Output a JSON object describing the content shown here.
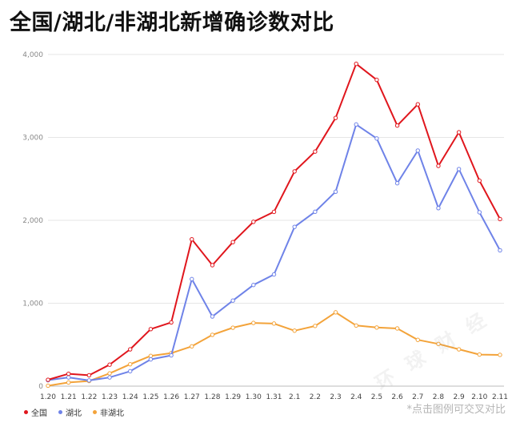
{
  "title": "全国/湖北/非湖北新增确诊数对比",
  "note": "*点击图例可交叉对比",
  "watermark": "环 球 财 经",
  "colors": {
    "national": "#e0161d",
    "hubei": "#6f83e8",
    "non_hubei": "#f3a33a",
    "grid": "#e6e6e6",
    "axis_text": "#888888"
  },
  "chart_data": {
    "type": "line",
    "title": "全国/湖北/非湖北新增确诊数对比",
    "x": [
      "1.20",
      "1.21",
      "1.22",
      "1.23",
      "1.24",
      "1.25",
      "1.26",
      "1.27",
      "1.28",
      "1.29",
      "1.30",
      "1.31",
      "2.1",
      "2.2",
      "2.3",
      "2.4",
      "2.5",
      "2.6",
      "2.7",
      "2.8",
      "2.9",
      "2.10",
      "2.11"
    ],
    "ylim": [
      0,
      4000
    ],
    "yticks": [
      0,
      1000,
      2000,
      3000,
      4000
    ],
    "ytick_labels": [
      "0",
      "1,000",
      "2,000",
      "3,000",
      "4,000"
    ],
    "grid": true,
    "legend_position": "bottom-left",
    "series": [
      {
        "key": "national",
        "name": "全国",
        "values": [
          77,
          149,
          131,
          259,
          444,
          688,
          769,
          1771,
          1459,
          1737,
          1982,
          2102,
          2590,
          2829,
          3235,
          3887,
          3694,
          3143,
          3399,
          2656,
          3062,
          2478,
          2015
        ]
      },
      {
        "key": "hubei",
        "name": "湖北",
        "values": [
          72,
          105,
          69,
          105,
          180,
          323,
          371,
          1291,
          840,
          1032,
          1220,
          1347,
          1921,
          2103,
          2345,
          3156,
          2987,
          2447,
          2841,
          2147,
          2618,
          2097,
          1638
        ]
      },
      {
        "key": "non_hubei",
        "name": "非湖北",
        "values": [
          5,
          44,
          62,
          154,
          264,
          365,
          398,
          480,
          619,
          705,
          762,
          755,
          669,
          726,
          890,
          731,
          707,
          696,
          558,
          509,
          444,
          381,
          377
        ]
      }
    ]
  }
}
